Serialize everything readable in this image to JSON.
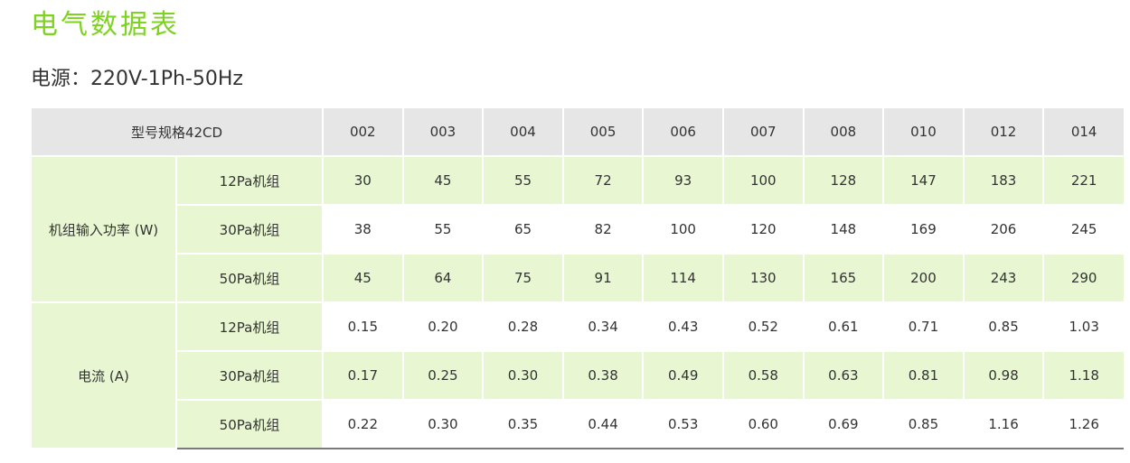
{
  "title": "电气数据表",
  "power_supply": "电源：220V-1Ph-50Hz",
  "table": {
    "model_header": "型号规格42CD",
    "models": [
      "002",
      "003",
      "004",
      "005",
      "006",
      "007",
      "008",
      "010",
      "012",
      "014"
    ],
    "groups": [
      {
        "label": "机组输入功率 (W)",
        "rows": [
          {
            "label": "12Pa机组",
            "values": [
              "30",
              "45",
              "55",
              "72",
              "93",
              "100",
              "128",
              "147",
              "183",
              "221"
            ]
          },
          {
            "label": "30Pa机组",
            "values": [
              "38",
              "55",
              "65",
              "82",
              "100",
              "120",
              "148",
              "169",
              "206",
              "245"
            ]
          },
          {
            "label": "50Pa机组",
            "values": [
              "45",
              "64",
              "75",
              "91",
              "114",
              "130",
              "165",
              "200",
              "243",
              "290"
            ]
          }
        ]
      },
      {
        "label": "电流 (A)",
        "rows": [
          {
            "label": "12Pa机组",
            "values": [
              "0.15",
              "0.20",
              "0.28",
              "0.34",
              "0.43",
              "0.52",
              "0.61",
              "0.71",
              "0.85",
              "1.03"
            ]
          },
          {
            "label": "30Pa机组",
            "values": [
              "0.17",
              "0.25",
              "0.30",
              "0.38",
              "0.49",
              "0.58",
              "0.63",
              "0.81",
              "0.98",
              "1.18"
            ]
          },
          {
            "label": "50Pa机组",
            "values": [
              "0.22",
              "0.30",
              "0.35",
              "0.44",
              "0.53",
              "0.60",
              "0.69",
              "0.85",
              "1.16",
              "1.26"
            ]
          }
        ]
      }
    ]
  },
  "colors": {
    "title": "#7ed321",
    "header_bg": "#e6e6e6",
    "row_green": "#e8f7d2",
    "row_white": "#ffffff"
  }
}
